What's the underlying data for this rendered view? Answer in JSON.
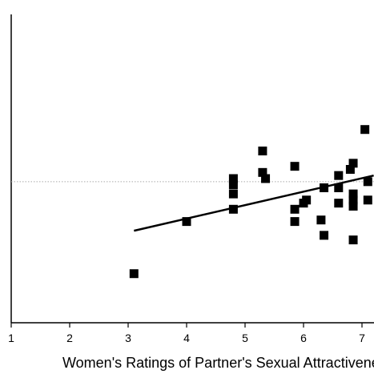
{
  "chart_data": {
    "type": "scatter",
    "title": "",
    "xlabel": "Women's Ratings of Partner's Sexual Attractiveness",
    "ylabel": "",
    "xlim": [
      1,
      7.2
    ],
    "ylim": [
      0,
      10
    ],
    "x_ticks": [
      "1",
      "2",
      "3",
      "4",
      "5",
      "6",
      "7"
    ],
    "reference_line": {
      "y": 4.6,
      "style": "dotted",
      "color": "#aaaaaa"
    },
    "fit_line": {
      "x": [
        3.1,
        7.2
      ],
      "y": [
        3.0,
        4.8
      ]
    },
    "points": [
      {
        "x": 3.1,
        "y": 1.6
      },
      {
        "x": 4.0,
        "y": 3.3
      },
      {
        "x": 4.8,
        "y": 4.2
      },
      {
        "x": 4.8,
        "y": 4.5
      },
      {
        "x": 4.8,
        "y": 3.7
      },
      {
        "x": 4.8,
        "y": 4.7
      },
      {
        "x": 5.3,
        "y": 5.6
      },
      {
        "x": 5.3,
        "y": 4.9
      },
      {
        "x": 5.35,
        "y": 4.7
      },
      {
        "x": 5.85,
        "y": 5.1
      },
      {
        "x": 5.85,
        "y": 3.7
      },
      {
        "x": 5.85,
        "y": 3.3
      },
      {
        "x": 6.0,
        "y": 3.9
      },
      {
        "x": 6.05,
        "y": 4.0
      },
      {
        "x": 6.3,
        "y": 3.35
      },
      {
        "x": 6.35,
        "y": 2.85
      },
      {
        "x": 6.35,
        "y": 4.4
      },
      {
        "x": 6.6,
        "y": 4.8
      },
      {
        "x": 6.6,
        "y": 3.9
      },
      {
        "x": 6.6,
        "y": 4.4
      },
      {
        "x": 6.8,
        "y": 5.0
      },
      {
        "x": 6.85,
        "y": 5.2
      },
      {
        "x": 6.85,
        "y": 4.2
      },
      {
        "x": 6.85,
        "y": 3.8
      },
      {
        "x": 6.85,
        "y": 2.7
      },
      {
        "x": 6.85,
        "y": 4.0
      },
      {
        "x": 7.05,
        "y": 6.3
      },
      {
        "x": 7.1,
        "y": 4.6
      },
      {
        "x": 7.1,
        "y": 4.0
      }
    ]
  }
}
